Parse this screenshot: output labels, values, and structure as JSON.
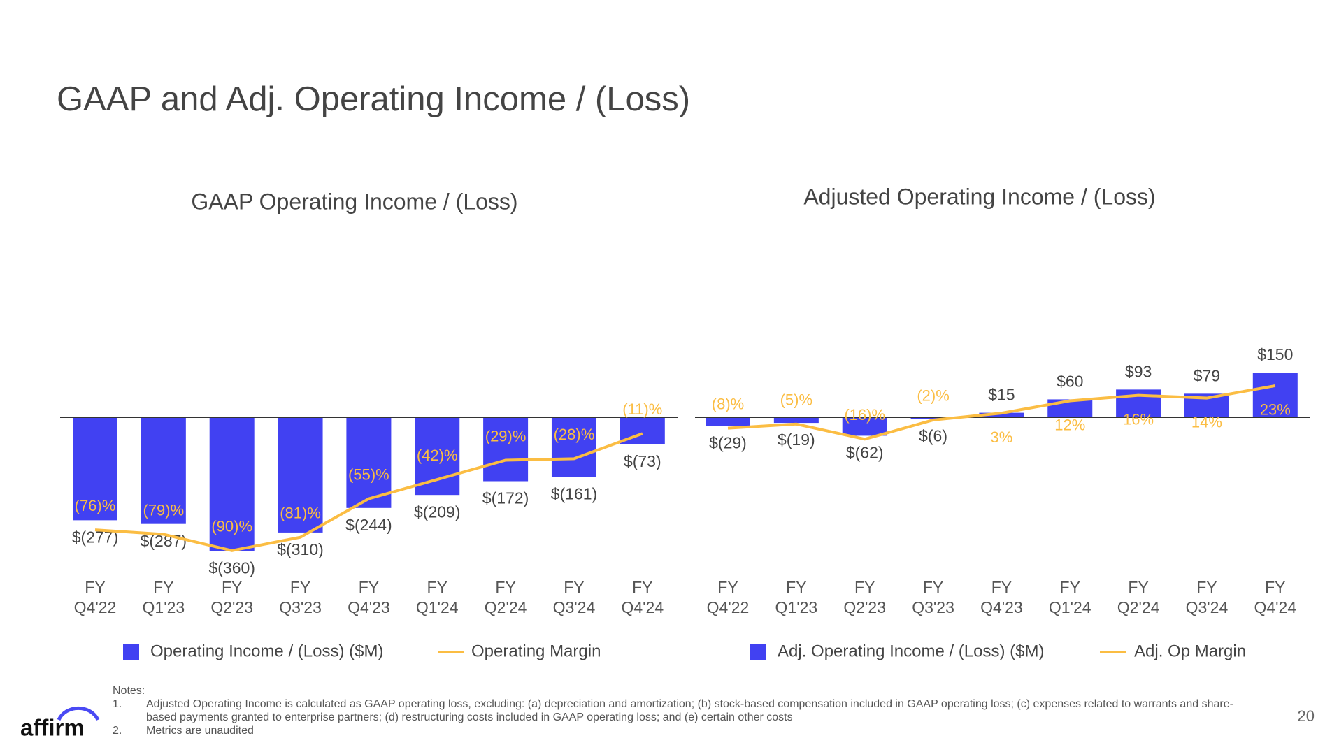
{
  "title": "GAAP and Adj. Operating Income / (Loss)",
  "chart_data": [
    {
      "type": "bar",
      "title": "GAAP Operating Income / (Loss)",
      "categories": [
        "FY Q4'22",
        "FY Q1'23",
        "FY Q2'23",
        "FY Q3'23",
        "FY Q4'23",
        "FY Q1'24",
        "FY Q2'24",
        "FY Q3'24",
        "FY Q4'24"
      ],
      "series": [
        {
          "name": "Operating Income / (Loss) ($M)",
          "color": "#4141f2",
          "type": "bar",
          "values": [
            -277,
            -287,
            -360,
            -310,
            -244,
            -209,
            -172,
            -161,
            -73
          ],
          "value_labels": [
            "$(277)",
            "$(287)",
            "$(360)",
            "$(310)",
            "$(244)",
            "$(209)",
            "$(172)",
            "$(161)",
            "$(73)"
          ]
        },
        {
          "name": "Operating Margin",
          "color": "#fbbd43",
          "type": "line",
          "values": [
            -76,
            -79,
            -90,
            -81,
            -55,
            -42,
            -29,
            -28,
            -11
          ],
          "value_labels": [
            "(76)%",
            "(79)%",
            "(90)%",
            "(81)%",
            "(55)%",
            "(42)%",
            "(29)%",
            "(28)%",
            "(11)%"
          ]
        }
      ]
    },
    {
      "type": "bar",
      "title": "Adjusted Operating Income / (Loss)",
      "categories": [
        "FY Q4'22",
        "FY Q1'23",
        "FY Q2'23",
        "FY Q3'23",
        "FY Q4'23",
        "FY Q1'24",
        "FY Q2'24",
        "FY Q3'24",
        "FY Q4'24"
      ],
      "series": [
        {
          "name": "Adj. Operating Income / (Loss) ($M)",
          "color": "#4141f2",
          "type": "bar",
          "values": [
            -29,
            -19,
            -62,
            -6,
            15,
            60,
            93,
            79,
            150
          ],
          "value_labels": [
            "$(29)",
            "$(19)",
            "$(62)",
            "$(6)",
            "$15",
            "$60",
            "$93",
            "$79",
            "$150"
          ]
        },
        {
          "name": "Adj. Op Margin",
          "color": "#fbbd43",
          "type": "line",
          "values": [
            -8,
            -5,
            -16,
            -2,
            3,
            12,
            16,
            14,
            23
          ],
          "value_labels": [
            "(8)%",
            "(5)%",
            "(16)%",
            "(2)%",
            "3%",
            "12%",
            "16%",
            "14%",
            "23%"
          ]
        }
      ]
    }
  ],
  "notes": {
    "heading": "Notes:",
    "items": [
      {
        "number": "1.",
        "text": "Adjusted Operating Income is calculated as GAAP operating loss, excluding: (a) depreciation and amortization; (b) stock-based compensation included in GAAP operating loss; (c) expenses related to warrants and share-based payments granted to enterprise partners; (d) restructuring costs included in GAAP operating loss;  and (e) certain other costs"
      },
      {
        "number": "2.",
        "text": "Metrics are unaudited"
      }
    ]
  },
  "logo": "affirm",
  "page_number": "20"
}
